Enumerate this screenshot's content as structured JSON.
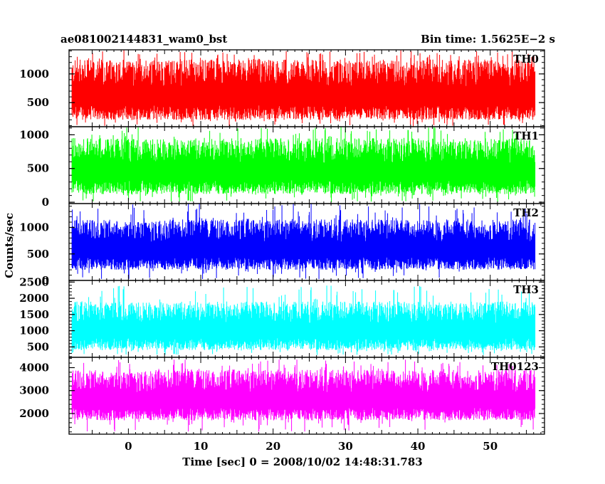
{
  "header": {
    "left_title": "ae081002144831_wam0_bst",
    "right_title": "Bin time: 1.5625E−2 s"
  },
  "chart_data": {
    "type": "line",
    "xlabel": "Time [sec] 0 = 2008/10/02 14:48:31.783",
    "ylabel": "Counts/sec",
    "xlim": [
      -8.2,
      57.5
    ],
    "x_data_range": [
      -7.8,
      56.2
    ],
    "x_ticks": [
      0,
      10,
      20,
      30,
      40,
      50
    ],
    "x_tick_labels": [
      "0",
      "10",
      "20",
      "30",
      "40",
      "50"
    ],
    "bin_time_s": 0.015625,
    "grid": false,
    "panels": [
      {
        "name": "TH0",
        "color": "#ff0000",
        "ylim": [
          80,
          1420
        ],
        "y_ticks": [
          500,
          1000
        ],
        "y_tick_labels": [
          "500",
          "1000"
        ],
        "typical_low": 200,
        "typical_high": 1250,
        "spike_max": 1420,
        "dip_min": 80
      },
      {
        "name": "TH1",
        "color": "#00ff00",
        "ylim": [
          -20,
          1120
        ],
        "y_ticks": [
          0,
          500,
          1000
        ],
        "y_tick_labels": [
          "0",
          "500",
          "1000"
        ],
        "typical_low": 120,
        "typical_high": 950,
        "spike_max": 1120,
        "dip_min": 0
      },
      {
        "name": "TH2",
        "color": "#0000ff",
        "ylim": [
          0,
          1450
        ],
        "y_ticks": [
          0,
          500,
          1000
        ],
        "y_tick_labels": [
          "0",
          "500",
          "1000"
        ],
        "typical_low": 200,
        "typical_high": 1150,
        "spike_max": 1450,
        "dip_min": 20
      },
      {
        "name": "TH3",
        "color": "#00ffff",
        "ylim": [
          180,
          2550
        ],
        "y_ticks": [
          500,
          1000,
          1500,
          2000,
          2500
        ],
        "y_tick_labels": [
          "500",
          "1000",
          "1500",
          "2000",
          "2500"
        ],
        "typical_low": 400,
        "typical_high": 1900,
        "spike_max": 2400,
        "dip_min": 250
      },
      {
        "name": "TH0123",
        "color": "#ff00ff",
        "ylim": [
          1100,
          4450
        ],
        "y_ticks": [
          2000,
          3000,
          4000
        ],
        "y_tick_labels": [
          "2000",
          "3000",
          "4000"
        ],
        "typical_low": 1700,
        "typical_high": 3900,
        "spike_max": 4350,
        "dip_min": 1200
      }
    ]
  }
}
